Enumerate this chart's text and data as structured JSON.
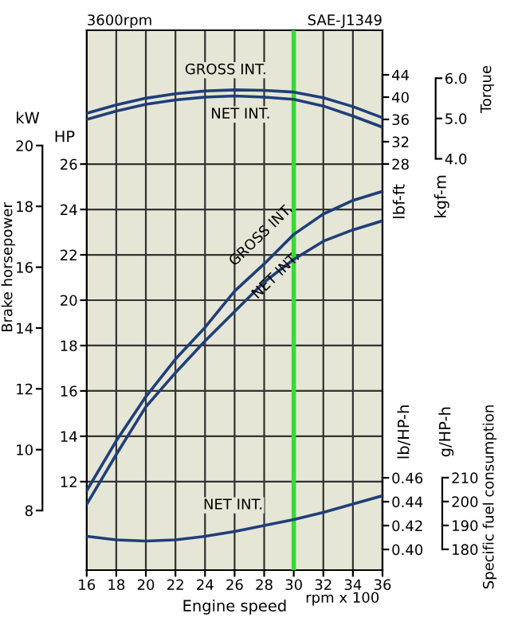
{
  "chart_data": [
    {
      "type": "line",
      "xlabel": "Engine speed",
      "ylabel": "HP",
      "y2label": "kW",
      "x": [
        16,
        18,
        20,
        22,
        24,
        26,
        28,
        30,
        32,
        34,
        36
      ],
      "xlim": [
        16,
        36
      ],
      "xticks": [
        16,
        18,
        20,
        22,
        24,
        26,
        28,
        30,
        32,
        34,
        36
      ],
      "ylim": [
        8.1,
        31.9
      ],
      "yticks": [
        12,
        14,
        16,
        18,
        20,
        22,
        24,
        26
      ],
      "y2lim": [
        6.04,
        23.79
      ],
      "y2ticks": [
        8,
        10,
        12,
        14,
        16,
        18,
        20
      ],
      "series": [
        {
          "color": "#1f3f7a",
          "values": [
            11.6,
            13.8,
            15.75,
            17.4,
            18.8,
            20.4,
            21.6,
            22.9,
            23.8,
            24.4,
            24.8
          ]
        },
        {
          "color": "#1f3f7a",
          "values": [
            11.0,
            13.2,
            15.3,
            16.8,
            18.2,
            19.5,
            20.8,
            21.8,
            22.6,
            23.1,
            23.5
          ]
        }
      ],
      "ref_lines": [
        {
          "axis": "x",
          "value": 30,
          "color": "#33dd33"
        }
      ],
      "grid": true,
      "annotations": [
        "3600rpm",
        "SAE-J1349",
        "Brake horsepower",
        "rpm x 100",
        "GROSS INT.",
        "NET INT."
      ]
    },
    {
      "type": "line",
      "ylabel": "lbf-ft",
      "y2label": "kgf-m",
      "x": [
        16,
        18,
        20,
        22,
        24,
        26,
        28,
        30,
        32,
        34,
        36
      ],
      "xlim": [
        16,
        36
      ],
      "ylim": [
        -44.9,
        52
      ],
      "yticks": [
        28,
        32,
        36,
        40,
        44
      ],
      "y2lim": [
        -6.21,
        7.19
      ],
      "y2ticks": [
        {
          "value": 4,
          "label": "4.0"
        },
        {
          "value": 5,
          "label": "5.0"
        },
        {
          "value": 6,
          "label": "6.0"
        }
      ],
      "series": [
        {
          "color": "#1f3f7a",
          "values": [
            37.1,
            38.6,
            39.8,
            40.6,
            41.1,
            41.3,
            41.2,
            40.9,
            39.9,
            38.3,
            36.3
          ]
        },
        {
          "color": "#1f3f7a",
          "values": [
            36.0,
            37.5,
            38.7,
            39.5,
            40.0,
            40.2,
            40.0,
            39.6,
            38.4,
            36.6,
            34.6
          ]
        }
      ],
      "annotations": [
        "Torque",
        "GROSS INT.",
        "NET INT."
      ]
    },
    {
      "type": "line",
      "ylabel": "lb/HP-h",
      "y2label": "g/HP-h",
      "x": [
        16,
        18,
        20,
        22,
        24,
        26,
        28,
        30,
        32,
        34,
        36
      ],
      "xlim": [
        16,
        36
      ],
      "ylim": [
        0.3827,
        0.8347
      ],
      "yticks": [
        {
          "value": 0.4,
          "label": "0.40"
        },
        {
          "value": 0.42,
          "label": "0.42"
        },
        {
          "value": 0.44,
          "label": "0.44"
        },
        {
          "value": 0.46,
          "label": "0.46"
        }
      ],
      "y2lim": [
        171.3,
        397.3
      ],
      "y2ticks": [
        180,
        190,
        200,
        210
      ],
      "series": [
        {
          "color": "#1f3f7a",
          "values": [
            0.411,
            0.408,
            0.407,
            0.408,
            0.411,
            0.415,
            0.42,
            0.425,
            0.431,
            0.438,
            0.445
          ]
        }
      ],
      "annotations": [
        "Specific fuel consumption",
        "NET INT."
      ]
    }
  ]
}
